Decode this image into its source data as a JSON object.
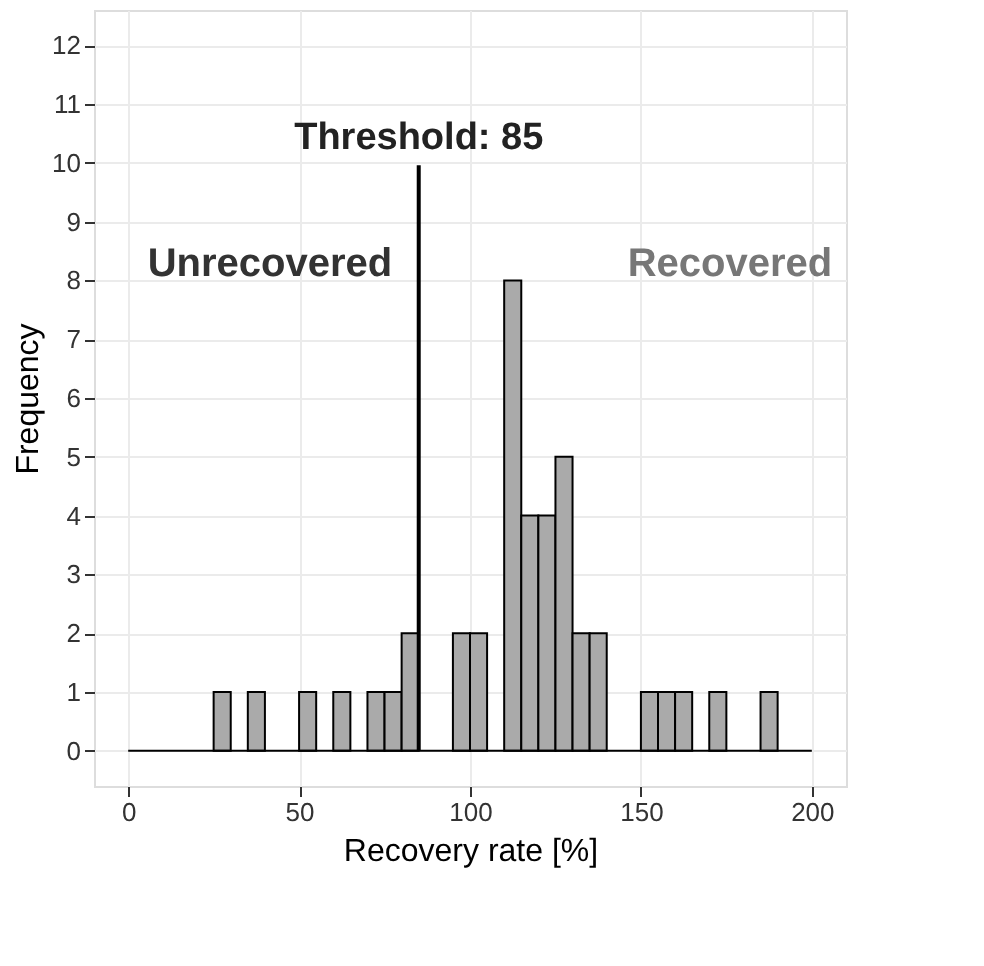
{
  "chart_data": {
    "type": "histogram",
    "xlabel": "Recovery rate [%]",
    "ylabel": "Frequency",
    "bins": [
      0,
      5,
      10,
      15,
      20,
      25,
      30,
      35,
      40,
      45,
      50,
      55,
      60,
      65,
      70,
      75,
      80,
      85,
      90,
      95,
      100,
      105,
      110,
      115,
      120,
      125,
      130,
      135,
      140,
      145,
      150,
      155,
      160,
      165,
      170,
      175,
      180,
      185,
      190,
      195,
      200
    ],
    "values": [
      0,
      0,
      0,
      0,
      0,
      1,
      0,
      1,
      0,
      0,
      1,
      0,
      1,
      0,
      1,
      1,
      2,
      0,
      0,
      2,
      2,
      0,
      8,
      4,
      4,
      5,
      2,
      2,
      0,
      0,
      1,
      1,
      1,
      0,
      1,
      0,
      0,
      1,
      0,
      0
    ],
    "color": "#aaaaaa",
    "xlim": [
      -10,
      210
    ],
    "xticks": [
      0,
      50,
      100,
      150,
      200
    ],
    "ylim": [
      -0.6,
      12.6
    ],
    "yticks": [
      0,
      1,
      2,
      3,
      4,
      5,
      6,
      7,
      8,
      9,
      10,
      11,
      12
    ],
    "grid": true,
    "ref_lines": [
      {
        "axis": "x",
        "value": 85,
        "label": "Threshold: 85",
        "color": "#000000"
      }
    ],
    "annotations": [
      "Unrecovered",
      "Recovered"
    ]
  }
}
